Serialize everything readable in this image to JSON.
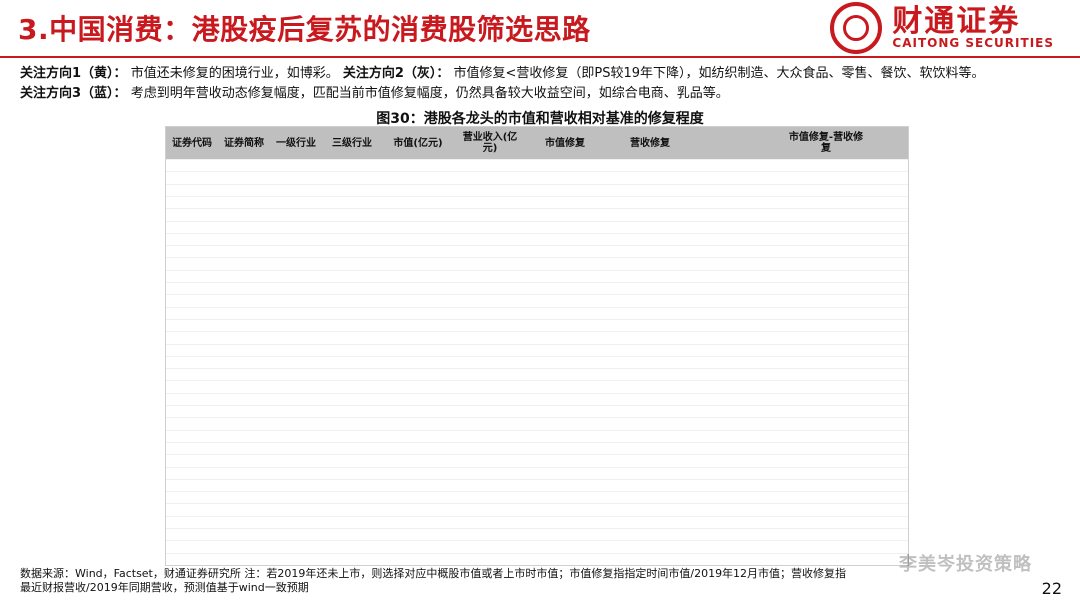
{
  "header": {
    "title": "3.中国消费：港股疫后复苏的消费股筛选思路",
    "brand_cn": "财通证券",
    "brand_en": "CAITONG SECURITIES"
  },
  "focus": {
    "line1_label": "关注方向1（黄）：",
    "line1_text": "市值还未修复的困境行业，如博彩。",
    "line2_label": "关注方向2（灰）：",
    "line2_text": "市值修复<营收修复（即PS较19年下降），如纺织制造、大众食品、零售、餐饮、软饮料等。",
    "line3_label": "关注方向3（蓝）：",
    "line3_text": "考虑到明年营收动态修复幅度，匹配当前市值修复幅度，仍然具备较大收益空间，如综合电商、乳品等。"
  },
  "figure": {
    "title": "图30：港股各龙头的市值和营收相对基准的修复程度"
  },
  "table": {
    "headers": [
      "证券代码",
      "证券简称",
      "一级行业",
      "三级行业",
      "市值(亿元)",
      "营业收入(亿元)",
      "市值修复",
      "营收修复",
      "",
      "市值修复-营收修复",
      ""
    ],
    "rows": []
  },
  "footnote": {
    "line1": "数据来源：Wind，Factset，财通证券研究所    注：若2019年还未上市，则选择对应中概股市值或者上市时市值；市值修复指指定时间市值/2019年12月市值；营收修复指",
    "line2": "最近财报营收/2019年同期营收，预测值基于wind一致预期"
  },
  "page": {
    "number": "22",
    "wechat_watermark": "李美岑投资策略"
  }
}
